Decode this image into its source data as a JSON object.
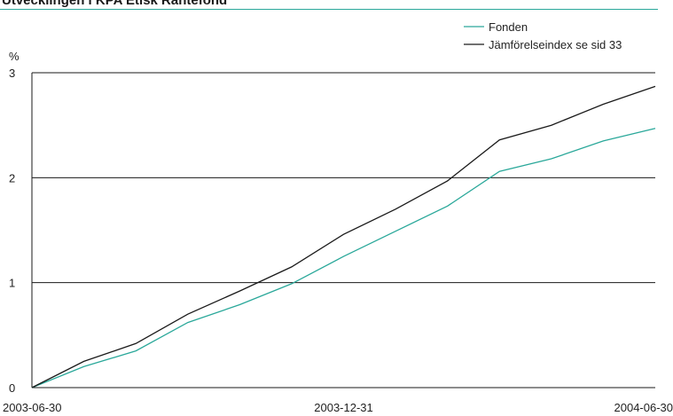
{
  "header": {
    "title": "Utvecklingen i KPA Etisk Räntefond"
  },
  "colors": {
    "fund": "#2aa89a",
    "index": "#1a1a1a",
    "accent": "#2aa89a"
  },
  "chart_data": {
    "type": "line",
    "title": "Utvecklingen i KPA Etisk Räntefond",
    "ylabel": "%",
    "xlabel": "",
    "ylim": [
      0,
      3
    ],
    "yticks": [
      "0",
      "1",
      "2",
      "3"
    ],
    "grid": "horizontal",
    "legend_position": "top-right",
    "x_tick_labels": [
      "2003-06-30",
      "2003-12-31",
      "2004-06-30"
    ],
    "x": [
      "2003-06-30",
      "2003-07-31",
      "2003-08-31",
      "2003-09-30",
      "2003-10-31",
      "2003-11-30",
      "2003-12-31",
      "2004-01-31",
      "2004-02-29",
      "2004-03-31",
      "2004-04-30",
      "2004-05-31",
      "2004-06-30"
    ],
    "series": [
      {
        "name": "Fonden",
        "color": "#2aa89a",
        "values": [
          0,
          0.2,
          0.35,
          0.62,
          0.79,
          0.99,
          1.25,
          1.49,
          1.73,
          2.06,
          2.18,
          2.35,
          2.47
        ]
      },
      {
        "name": "Jämförelseindex se sid 33",
        "color": "#1a1a1a",
        "values": [
          0,
          0.25,
          0.42,
          0.7,
          0.92,
          1.15,
          1.46,
          1.7,
          1.97,
          2.36,
          2.5,
          2.7,
          2.87
        ]
      }
    ]
  }
}
